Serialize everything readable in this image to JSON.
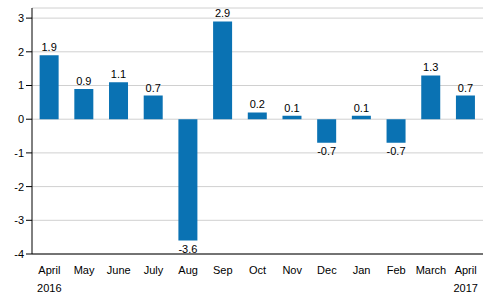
{
  "chart_data": {
    "type": "bar",
    "categories": [
      "April",
      "May",
      "June",
      "July",
      "Aug",
      "Sep",
      "Oct",
      "Nov",
      "Dec",
      "Jan",
      "Feb",
      "March",
      "April"
    ],
    "years": [
      "2016",
      null,
      null,
      null,
      null,
      null,
      null,
      null,
      null,
      null,
      null,
      null,
      "2017"
    ],
    "values": [
      1.9,
      0.9,
      1.1,
      0.7,
      -3.6,
      2.9,
      0.2,
      0.1,
      -0.7,
      0.1,
      -0.7,
      1.3,
      0.7
    ],
    "color": "#0a72b3",
    "ylim": [
      -4,
      3.3
    ],
    "yticks": [
      -4,
      -3,
      -2,
      -1,
      0,
      1,
      2,
      3
    ],
    "grid": true,
    "data_labels": true
  }
}
